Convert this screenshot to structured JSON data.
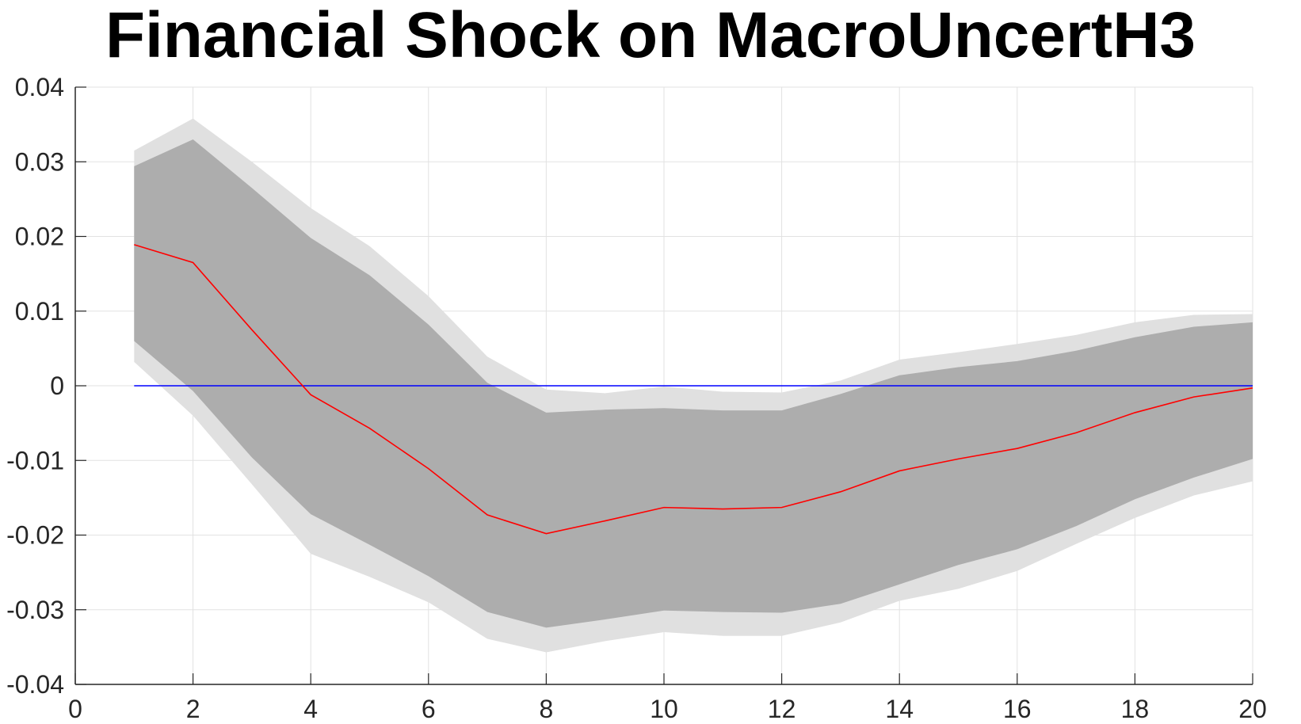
{
  "chart_data": {
    "type": "line",
    "title": "Financial Shock on MacroUncertH3",
    "xlabel": "",
    "ylabel": "",
    "xlim": [
      0,
      20
    ],
    "ylim": [
      -0.04,
      0.04
    ],
    "xticks": [
      0,
      2,
      4,
      6,
      8,
      10,
      12,
      14,
      16,
      18,
      20
    ],
    "xtick_labels": [
      "0",
      "2",
      "4",
      "6",
      "8",
      "10",
      "12",
      "14",
      "16",
      "18",
      "20"
    ],
    "yticks": [
      0.04,
      0.03,
      0.02,
      0.01,
      0,
      -0.01,
      -0.02,
      -0.03,
      -0.04
    ],
    "ytick_labels": [
      "0.04",
      "0.03",
      "0.02",
      "0.01",
      "0",
      "-0.01",
      "-0.02",
      "-0.03",
      "-0.04"
    ],
    "grid": true,
    "x": [
      1,
      2,
      3,
      4,
      5,
      6,
      7,
      8,
      9,
      10,
      11,
      12,
      13,
      14,
      15,
      16,
      17,
      18,
      19,
      20
    ],
    "series": [
      {
        "role": "median",
        "color": "#ff0000",
        "values": [
          0.0189,
          0.0165,
          0.0075,
          -0.0012,
          -0.0057,
          -0.0111,
          -0.0173,
          -0.0198,
          -0.0181,
          -0.0163,
          -0.0165,
          -0.0163,
          -0.0142,
          -0.0114,
          -0.0098,
          -0.0084,
          -0.0063,
          -0.0036,
          -0.0015,
          -0.0003
        ]
      },
      {
        "role": "zero-line",
        "color": "#0000ff",
        "values": [
          0,
          0,
          0,
          0,
          0,
          0,
          0,
          0,
          0,
          0,
          0,
          0,
          0,
          0,
          0,
          0,
          0,
          0,
          0,
          0
        ]
      }
    ],
    "bands": [
      {
        "role": "outer-band",
        "color": "#e0e0e0",
        "upper": [
          0.0315,
          0.0358,
          0.03,
          0.0238,
          0.0187,
          0.012,
          0.0039,
          -0.0005,
          -0.001,
          -0.0001,
          -0.0008,
          -0.0009,
          0.0007,
          0.0035,
          0.0045,
          0.0056,
          0.0068,
          0.0085,
          0.0095,
          0.0096
        ],
        "lower": [
          0.0032,
          -0.004,
          -0.0132,
          -0.0225,
          -0.0256,
          -0.029,
          -0.0339,
          -0.0357,
          -0.0342,
          -0.033,
          -0.0335,
          -0.0335,
          -0.0317,
          -0.0288,
          -0.0272,
          -0.0248,
          -0.0212,
          -0.0177,
          -0.0147,
          -0.0128
        ]
      },
      {
        "role": "inner-band",
        "color": "#adadad",
        "upper": [
          0.0294,
          0.033,
          0.0265,
          0.0198,
          0.0148,
          0.0082,
          0.0004,
          -0.0036,
          -0.0032,
          -0.003,
          -0.0033,
          -0.0033,
          -0.0011,
          0.0014,
          0.0025,
          0.0033,
          0.0047,
          0.0065,
          0.0079,
          0.0085
        ],
        "lower": [
          0.006,
          -0.0007,
          -0.0096,
          -0.0172,
          -0.0213,
          -0.0255,
          -0.0303,
          -0.0324,
          -0.0313,
          -0.0301,
          -0.0303,
          -0.0304,
          -0.0292,
          -0.0266,
          -0.024,
          -0.0219,
          -0.0188,
          -0.0152,
          -0.0123,
          -0.0098
        ]
      }
    ]
  }
}
